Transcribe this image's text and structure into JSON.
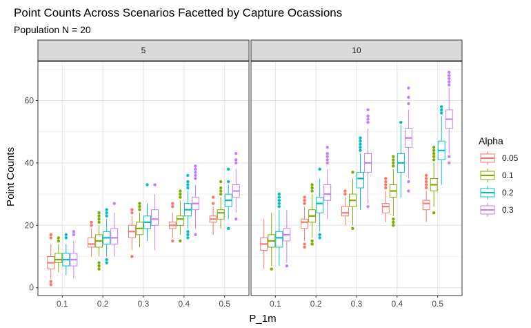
{
  "chart_data": {
    "type": "boxplot",
    "title": "Point Counts Across Scenarios Facetted by Capture Ocassions",
    "subtitle": "Population N = 20",
    "xlabel": "P_1m",
    "ylabel": "Point Counts",
    "ylim": [
      -2.5,
      72.5
    ],
    "yticks": [
      0,
      20,
      40,
      60
    ],
    "categories": [
      "0.1",
      "0.2",
      "0.3",
      "0.4",
      "0.5"
    ],
    "legend": {
      "title": "Alpha",
      "position": "right"
    },
    "grid": true,
    "series": [
      {
        "name": "0.05",
        "color": "#F8766D"
      },
      {
        "name": "0.1",
        "color": "#7CAE00"
      },
      {
        "name": "0.2",
        "color": "#00BFC4"
      },
      {
        "name": "0.3",
        "color": "#C77CFF"
      }
    ],
    "facets": [
      {
        "label": "5",
        "boxes": [
          [
            {
              "min": 3,
              "q1": 6,
              "median": 8,
              "q3": 10,
              "max": 14,
              "outliers": [
                1,
                2,
                16,
                17
              ]
            },
            {
              "min": 5,
              "q1": 8,
              "median": 9,
              "q3": 11,
              "max": 14,
              "outliers": [
                15,
                16
              ]
            },
            {
              "min": 4,
              "q1": 7,
              "median": 9,
              "q3": 11,
              "max": 14,
              "outliers": [
                16,
                17
              ]
            },
            {
              "min": 3,
              "q1": 7,
              "median": 9,
              "q3": 11,
              "max": 15,
              "outliers": [
                17,
                18
              ]
            }
          ],
          [
            {
              "min": 10,
              "q1": 13,
              "median": 14,
              "q3": 16,
              "max": 19,
              "outliers": [
                20,
                21
              ]
            },
            {
              "min": 10,
              "q1": 13,
              "median": 15,
              "q3": 17,
              "max": 20,
              "outliers": [
                6,
                7,
                8,
                21,
                22,
                23,
                24
              ]
            },
            {
              "min": 10,
              "q1": 14,
              "median": 16,
              "q3": 18,
              "max": 22,
              "outliers": [
                8,
                9,
                23,
                24,
                25
              ]
            },
            {
              "min": 10,
              "q1": 14,
              "median": 16,
              "q3": 19,
              "max": 24,
              "outliers": [
                27
              ]
            }
          ],
          [
            {
              "min": 12,
              "q1": 16,
              "median": 18,
              "q3": 20,
              "max": 23,
              "outliers": [
                10,
                24,
                25
              ]
            },
            {
              "min": 13,
              "q1": 17,
              "median": 19,
              "q3": 21,
              "max": 24,
              "outliers": [
                25,
                26,
                27
              ]
            },
            {
              "min": 15,
              "q1": 19,
              "median": 21,
              "q3": 23,
              "max": 27,
              "outliers": [
                33
              ]
            },
            {
              "min": 12,
              "q1": 20,
              "median": 22,
              "q3": 25,
              "max": 30,
              "outliers": [
                33
              ]
            }
          ],
          [
            {
              "min": 16,
              "q1": 19,
              "median": 20,
              "q3": 21,
              "max": 24,
              "outliers": [
                15,
                26,
                27
              ]
            },
            {
              "min": 17,
              "q1": 20,
              "median": 22,
              "q3": 23,
              "max": 28,
              "outliers": [
                15,
                29,
                30,
                31
              ]
            },
            {
              "min": 19,
              "q1": 23,
              "median": 25,
              "q3": 27,
              "max": 31,
              "outliers": [
                16,
                17,
                18,
                32,
                33,
                34,
                36
              ]
            },
            {
              "min": 19,
              "q1": 25,
              "median": 27,
              "q3": 29,
              "max": 33,
              "outliers": [
                17,
                35,
                36,
                37,
                38,
                39
              ]
            }
          ],
          [
            {
              "min": 17,
              "q1": 21,
              "median": 22,
              "q3": 23,
              "max": 26,
              "outliers": [
                27,
                29
              ]
            },
            {
              "min": 19,
              "q1": 22,
              "median": 24,
              "q3": 25,
              "max": 29,
              "outliers": [
                30,
                31,
                32,
                34
              ]
            },
            {
              "min": 22,
              "q1": 26,
              "median": 28,
              "q3": 30,
              "max": 33,
              "outliers": [
                19,
                34,
                38
              ]
            },
            {
              "min": 24,
              "q1": 29,
              "median": 31,
              "q3": 33,
              "max": 38,
              "outliers": [
                22,
                40,
                41,
                43
              ]
            }
          ]
        ]
      },
      {
        "label": "10",
        "boxes": [
          [
            {
              "min": 6,
              "q1": 12,
              "median": 14,
              "q3": 16,
              "max": 22,
              "outliers": []
            },
            {
              "min": 7,
              "q1": 13,
              "median": 15,
              "q3": 17,
              "max": 24,
              "outliers": [
                6
              ]
            },
            {
              "min": 7,
              "q1": 13,
              "median": 16,
              "q3": 18,
              "max": 25,
              "outliers": [
                26,
                27,
                28,
                29,
                30
              ]
            },
            {
              "min": 8,
              "q1": 15,
              "median": 17,
              "q3": 19,
              "max": 25,
              "outliers": [
                7
              ]
            }
          ],
          [
            {
              "min": 15,
              "q1": 19,
              "median": 21,
              "q3": 22,
              "max": 26,
              "outliers": [
                13,
                14,
                27,
                28,
                29
              ]
            },
            {
              "min": 16,
              "q1": 21,
              "median": 23,
              "q3": 25,
              "max": 30,
              "outliers": [
                14,
                15,
                31,
                32,
                33
              ]
            },
            {
              "min": 18,
              "q1": 24,
              "median": 27,
              "q3": 29,
              "max": 35,
              "outliers": [
                16,
                17,
                38
              ]
            },
            {
              "min": 22,
              "q1": 28,
              "median": 30,
              "q3": 33,
              "max": 38,
              "outliers": [
                40,
                41,
                42,
                43,
                45
              ]
            }
          ],
          [
            {
              "min": 20,
              "q1": 23,
              "median": 24,
              "q3": 26,
              "max": 29,
              "outliers": [
                30,
                31
              ]
            },
            {
              "min": 20,
              "q1": 26,
              "median": 28,
              "q3": 30,
              "max": 35,
              "outliers": [
                19,
                37
              ]
            },
            {
              "min": 25,
              "q1": 32,
              "median": 35,
              "q3": 37,
              "max": 43,
              "outliers": [
                44,
                45,
                46,
                47,
                48
              ]
            },
            {
              "min": 27,
              "q1": 37,
              "median": 40,
              "q3": 43,
              "max": 51,
              "outliers": [
                26,
                53,
                54,
                55,
                57
              ]
            }
          ],
          [
            {
              "min": 21,
              "q1": 24,
              "median": 26,
              "q3": 27,
              "max": 31,
              "outliers": [
                32,
                33,
                34,
                35
              ]
            },
            {
              "min": 23,
              "q1": 29,
              "median": 31,
              "q3": 33,
              "max": 38,
              "outliers": [
                20,
                21,
                22,
                39,
                40,
                41,
                42
              ]
            },
            {
              "min": 29,
              "q1": 37,
              "median": 40,
              "q3": 43,
              "max": 52,
              "outliers": [
                53
              ]
            },
            {
              "min": 35,
              "q1": 45,
              "median": 48,
              "q3": 51,
              "max": 57,
              "outliers": [
                31,
                34,
                59,
                61,
                64
              ]
            }
          ],
          [
            {
              "min": 21,
              "q1": 25,
              "median": 27,
              "q3": 28,
              "max": 31,
              "outliers": [
                32,
                33,
                34,
                35,
                36
              ]
            },
            {
              "min": 26,
              "q1": 31,
              "median": 33,
              "q3": 35,
              "max": 40,
              "outliers": [
                24,
                41,
                42,
                43,
                44,
                45
              ]
            },
            {
              "min": 33,
              "q1": 41,
              "median": 44,
              "q3": 47,
              "max": 55,
              "outliers": [
                56,
                57,
                58
              ]
            },
            {
              "min": 43,
              "q1": 51,
              "median": 54,
              "q3": 57,
              "max": 64,
              "outliers": [
                40,
                42,
                65,
                66,
                67,
                68,
                69
              ]
            }
          ]
        ]
      }
    ]
  }
}
